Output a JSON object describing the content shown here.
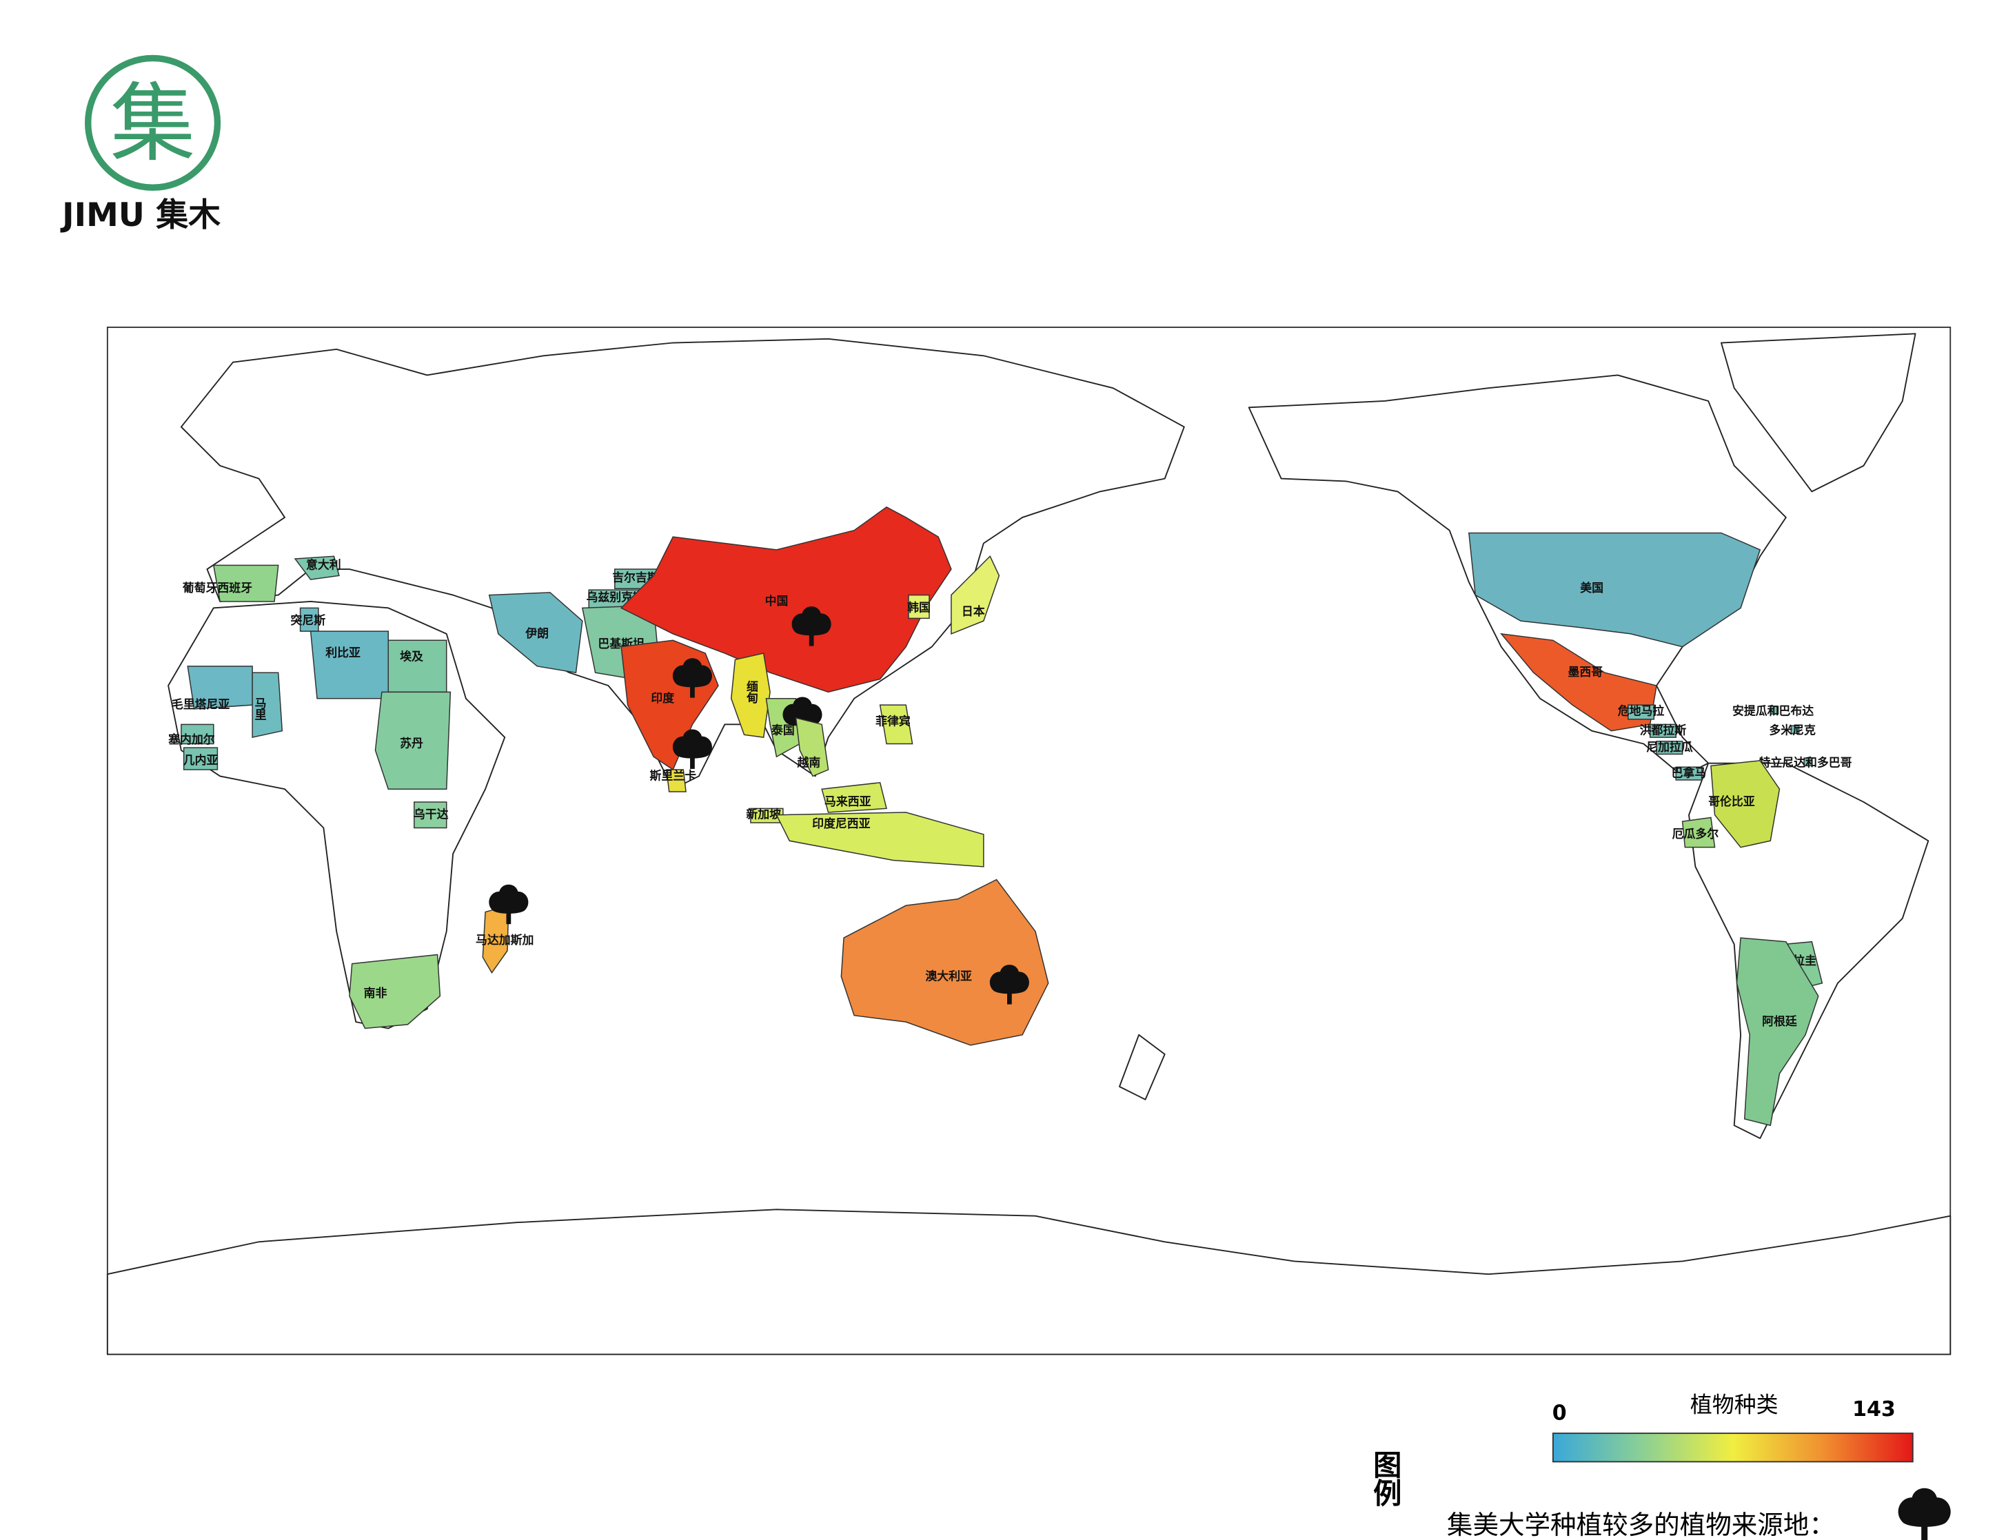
{
  "logo": {
    "text": "JIMU 集木",
    "mark": "集"
  },
  "map": {
    "countries": [
      {
        "name": "葡萄牙西班牙",
        "color": "#92d48c"
      },
      {
        "name": "意大利",
        "color": "#7cc8ac"
      },
      {
        "name": "突尼斯",
        "color": "#6fbcc4"
      },
      {
        "name": "利比亚",
        "color": "#69b8c4"
      },
      {
        "name": "埃及",
        "color": "#7ec8a4"
      },
      {
        "name": "苏丹",
        "color": "#84cca0"
      },
      {
        "name": "毛里塔尼亚",
        "color": "#6cb8c4"
      },
      {
        "name": "马里",
        "color": "#6fbcc0"
      },
      {
        "name": "塞内加尔",
        "color": "#78c4b0"
      },
      {
        "name": "几内亚",
        "color": "#78c4b0"
      },
      {
        "name": "乌干达",
        "color": "#8cd0a0"
      },
      {
        "name": "南非",
        "color": "#9cd88a"
      },
      {
        "name": "马达加斯加",
        "color": "#f4b040",
        "tree": true
      },
      {
        "name": "伊朗",
        "color": "#6cb8c0"
      },
      {
        "name": "吉尔吉斯斯坦",
        "color": "#7cc4b0"
      },
      {
        "name": "乌兹别克斯坦",
        "color": "#7cc4b0"
      },
      {
        "name": "巴基斯坦",
        "color": "#82c8a2"
      },
      {
        "name": "中国",
        "color": "#e62a1e",
        "tree": true
      },
      {
        "name": "印度",
        "color": "#e8441e",
        "tree": true
      },
      {
        "name": "斯里兰卡",
        "color": "#e8e040",
        "tree": true
      },
      {
        "name": "缅甸",
        "color": "#e8e034"
      },
      {
        "name": "泰国",
        "color": "#a8dc78",
        "tree": true
      },
      {
        "name": "越南",
        "color": "#b8e070"
      },
      {
        "name": "菲律宾",
        "color": "#d8ec60"
      },
      {
        "name": "韩国",
        "color": "#e4f070"
      },
      {
        "name": "日本",
        "color": "#e4f070"
      },
      {
        "name": "马来西亚",
        "color": "#d4ea60"
      },
      {
        "name": "新加坡",
        "color": "#d4ea60"
      },
      {
        "name": "印度尼西亚",
        "color": "#d8ec60"
      },
      {
        "name": "澳大利亚",
        "color": "#f08a40",
        "tree": true
      },
      {
        "name": "美国",
        "color": "#6cb4c0"
      },
      {
        "name": "墨西哥",
        "color": "#ec5a2a"
      },
      {
        "name": "危地马拉",
        "color": "#78c0b4"
      },
      {
        "name": "洪都拉斯",
        "color": "#78c0b4"
      },
      {
        "name": "尼加拉瓜",
        "color": "#78c0b4"
      },
      {
        "name": "巴拿马",
        "color": "#78c0b4"
      },
      {
        "name": "安提瓜和巴布达",
        "color": "#78c0b4"
      },
      {
        "name": "多米尼克",
        "color": "#78c0b4"
      },
      {
        "name": "特立尼达和多巴哥",
        "color": "#78c0b4"
      },
      {
        "name": "哥伦比亚",
        "color": "#c8e050"
      },
      {
        "name": "厄瓜多尔",
        "color": "#a0d880"
      },
      {
        "name": "巴拉圭",
        "color": "#84cc98"
      },
      {
        "name": "阿根廷",
        "color": "#80c890"
      }
    ]
  },
  "legend": {
    "heading": "图例",
    "title": "植物种类",
    "min": 0,
    "max": 143,
    "colors": [
      "#3aa8d8",
      "#8cd094",
      "#f0ee40",
      "#f09030",
      "#e41818"
    ],
    "tree_note": "集美大学种植较多的植物来源地："
  }
}
